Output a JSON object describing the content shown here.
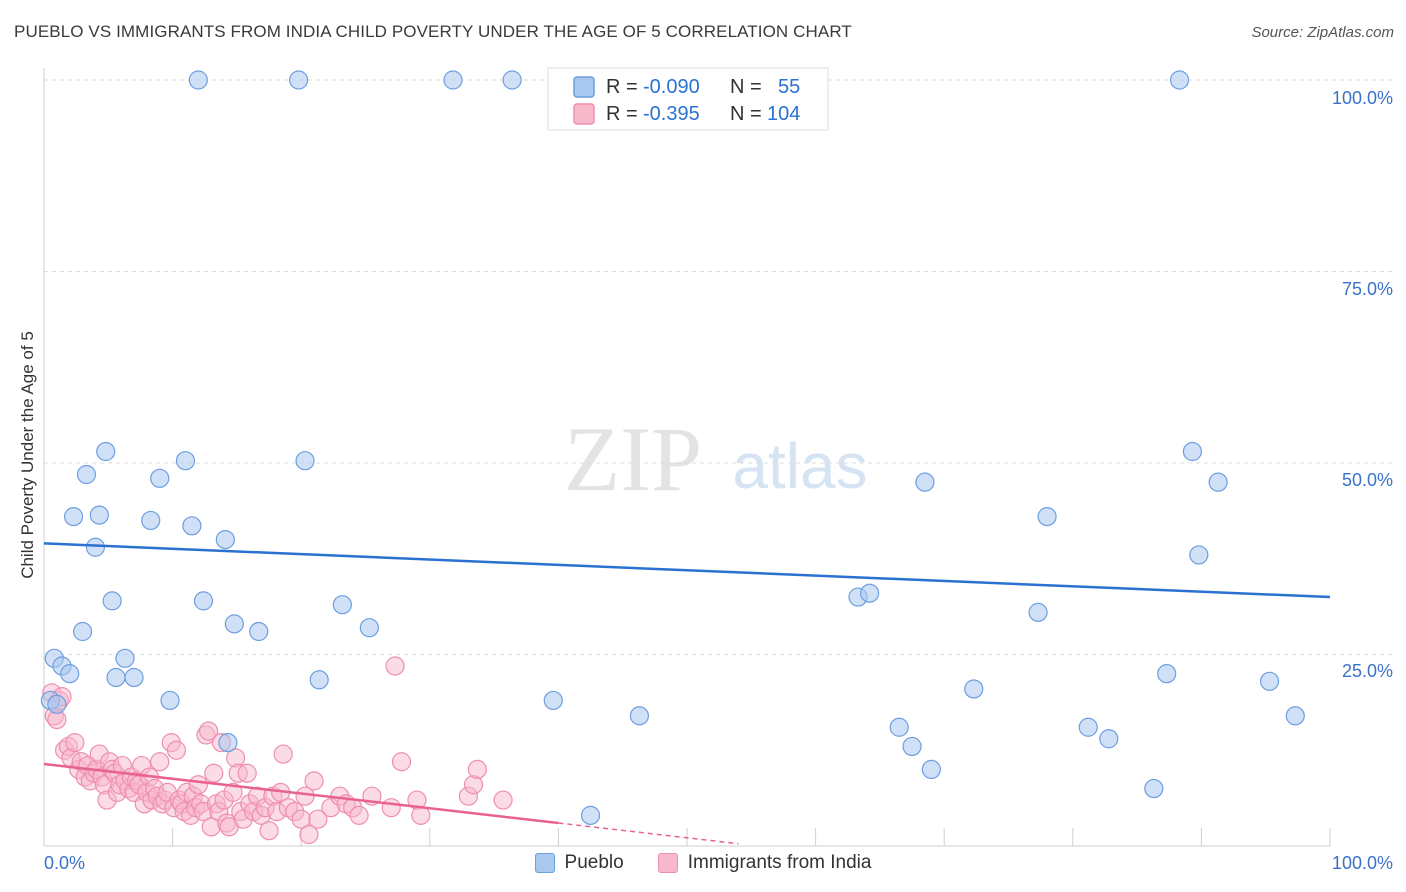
{
  "title": "PUEBLO VS IMMIGRANTS FROM INDIA CHILD POVERTY UNDER THE AGE OF 5 CORRELATION CHART",
  "source": "Source: ZipAtlas.com",
  "watermark": {
    "zip": "ZIP",
    "atlas": "atlas"
  },
  "colors": {
    "pueblo_fill": "#a9c8f0",
    "pueblo_stroke": "#6d9ee0",
    "pueblo_line": "#2a72d2",
    "india_fill": "#f7b8cc",
    "india_stroke": "#ee8fae",
    "india_line": "#e8628f",
    "tick_text": "#3a72c8",
    "grid": "#dddddd"
  },
  "legend": {
    "rows": [
      {
        "r_label": "R =",
        "r_value": "-0.090",
        "n_label": "N =",
        "n_value": "55",
        "series": "pueblo"
      },
      {
        "r_label": "R =",
        "r_value": "-0.395",
        "n_label": "N =",
        "n_value": "104",
        "series": "india"
      }
    ]
  },
  "chart_data": {
    "type": "scatter",
    "title": "PUEBLO VS IMMIGRANTS FROM INDIA CHILD POVERTY UNDER THE AGE OF 5 CORRELATION CHART",
    "xlabel": "",
    "ylabel": "Child Poverty Under the Age of 5",
    "xlim": [
      0,
      100
    ],
    "ylim": [
      0,
      100
    ],
    "x_tick_labels": [
      "0.0%",
      "100.0%"
    ],
    "y_ticks": [
      25,
      50,
      75,
      100
    ],
    "y_tick_labels": [
      "25.0%",
      "50.0%",
      "75.0%",
      "100.0%"
    ],
    "grid": true,
    "legend_position": "top-center",
    "series": [
      {
        "name": "Pueblo",
        "color": "#a9c8f0",
        "trend": {
          "x": [
            0,
            100
          ],
          "y": [
            39.5,
            32.5
          ]
        },
        "points": [
          [
            0.8,
            24.5
          ],
          [
            1.4,
            23.5
          ],
          [
            2.0,
            22.5
          ],
          [
            2.3,
            43
          ],
          [
            3.3,
            48.5
          ],
          [
            4.0,
            39
          ],
          [
            4.3,
            43.2
          ],
          [
            4.8,
            51.5
          ],
          [
            5.3,
            32
          ],
          [
            5.6,
            22
          ],
          [
            3.0,
            28
          ],
          [
            6.3,
            24.5
          ],
          [
            7.0,
            22
          ],
          [
            8.3,
            42.5
          ],
          [
            9.0,
            48
          ],
          [
            9.8,
            19
          ],
          [
            11.0,
            50.3
          ],
          [
            11.5,
            41.8
          ],
          [
            12.0,
            100
          ],
          [
            12.4,
            32
          ],
          [
            14.1,
            40
          ],
          [
            14.3,
            13.5
          ],
          [
            14.8,
            29
          ],
          [
            16.7,
            28
          ],
          [
            19.8,
            100
          ],
          [
            20.3,
            50.3
          ],
          [
            21.4,
            21.7
          ],
          [
            23.2,
            31.5
          ],
          [
            25.3,
            28.5
          ],
          [
            31.8,
            100
          ],
          [
            36.4,
            100
          ],
          [
            39.6,
            19
          ],
          [
            42.5,
            4
          ],
          [
            46.3,
            17
          ],
          [
            63.3,
            32.5
          ],
          [
            64.2,
            33
          ],
          [
            66.5,
            15.5
          ],
          [
            67.5,
            13
          ],
          [
            68.5,
            47.5
          ],
          [
            69.0,
            10
          ],
          [
            72.3,
            20.5
          ],
          [
            77.3,
            30.5
          ],
          [
            78.0,
            43
          ],
          [
            81.2,
            15.5
          ],
          [
            82.8,
            14
          ],
          [
            86.3,
            7.5
          ],
          [
            87.3,
            22.5
          ],
          [
            88.3,
            100
          ],
          [
            89.3,
            51.5
          ],
          [
            89.8,
            38
          ],
          [
            91.3,
            47.5
          ],
          [
            95.3,
            21.5
          ],
          [
            97.3,
            17
          ],
          [
            0.5,
            19
          ],
          [
            1.0,
            18.5
          ]
        ]
      },
      {
        "name": "Immigrants from India",
        "color": "#f7b8cc",
        "trend": {
          "x": [
            0,
            40
          ],
          "y": [
            10.7,
            3.0
          ]
        },
        "trend_dashed_extension": {
          "x": [
            40,
            54
          ],
          "y": [
            3.0,
            0.3
          ]
        },
        "points": [
          [
            0.6,
            20
          ],
          [
            0.8,
            17
          ],
          [
            1.2,
            19
          ],
          [
            1.6,
            12.5
          ],
          [
            1.9,
            13
          ],
          [
            2.1,
            11.5
          ],
          [
            2.4,
            13.5
          ],
          [
            2.7,
            10
          ],
          [
            2.9,
            11
          ],
          [
            3.2,
            9
          ],
          [
            3.4,
            10.5
          ],
          [
            3.6,
            8.5
          ],
          [
            3.9,
            9.5
          ],
          [
            4.1,
            10
          ],
          [
            4.3,
            12
          ],
          [
            4.5,
            9
          ],
          [
            4.7,
            8
          ],
          [
            4.9,
            6
          ],
          [
            5.1,
            11
          ],
          [
            5.3,
            10
          ],
          [
            5.5,
            9.5
          ],
          [
            5.7,
            7
          ],
          [
            5.9,
            8
          ],
          [
            6.1,
            10.5
          ],
          [
            6.3,
            8.5
          ],
          [
            6.6,
            7.5
          ],
          [
            6.8,
            9
          ],
          [
            7.0,
            7
          ],
          [
            7.2,
            8.5
          ],
          [
            7.4,
            8
          ],
          [
            7.6,
            10.5
          ],
          [
            7.8,
            5.5
          ],
          [
            8.0,
            7
          ],
          [
            8.2,
            9
          ],
          [
            8.4,
            6
          ],
          [
            8.6,
            7.5
          ],
          [
            8.8,
            6.5
          ],
          [
            9.0,
            11
          ],
          [
            9.2,
            5.5
          ],
          [
            9.4,
            6
          ],
          [
            9.6,
            7
          ],
          [
            9.9,
            13.5
          ],
          [
            10.1,
            5
          ],
          [
            10.3,
            12.5
          ],
          [
            10.5,
            6
          ],
          [
            10.7,
            5.5
          ],
          [
            10.9,
            4.5
          ],
          [
            11.1,
            7
          ],
          [
            11.4,
            4
          ],
          [
            11.6,
            6.5
          ],
          [
            11.8,
            5
          ],
          [
            12.0,
            8
          ],
          [
            12.2,
            5.5
          ],
          [
            12.4,
            4.5
          ],
          [
            12.6,
            14.5
          ],
          [
            12.8,
            15
          ],
          [
            13.0,
            2.5
          ],
          [
            13.2,
            9.5
          ],
          [
            13.4,
            5.5
          ],
          [
            13.6,
            4.5
          ],
          [
            13.8,
            13.5
          ],
          [
            14.0,
            6
          ],
          [
            14.2,
            3
          ],
          [
            14.4,
            2.5
          ],
          [
            14.7,
            7
          ],
          [
            14.9,
            11.5
          ],
          [
            15.1,
            9.5
          ],
          [
            15.3,
            4.5
          ],
          [
            15.5,
            3.5
          ],
          [
            15.8,
            9.5
          ],
          [
            16.0,
            5.5
          ],
          [
            16.3,
            4.5
          ],
          [
            16.6,
            6.5
          ],
          [
            16.9,
            4
          ],
          [
            17.2,
            5
          ],
          [
            17.5,
            2
          ],
          [
            17.8,
            6.5
          ],
          [
            18.1,
            4.5
          ],
          [
            18.4,
            7
          ],
          [
            18.6,
            12
          ],
          [
            19.0,
            5
          ],
          [
            19.5,
            4.5
          ],
          [
            20.0,
            3.5
          ],
          [
            20.3,
            6.5
          ],
          [
            20.6,
            1.5
          ],
          [
            21.0,
            8.5
          ],
          [
            21.3,
            3.5
          ],
          [
            22.3,
            5
          ],
          [
            23.0,
            6.5
          ],
          [
            23.5,
            5.5
          ],
          [
            24.0,
            5
          ],
          [
            24.5,
            4
          ],
          [
            25.5,
            6.5
          ],
          [
            27.0,
            5
          ],
          [
            27.3,
            23.5
          ],
          [
            27.8,
            11
          ],
          [
            29.0,
            6
          ],
          [
            29.3,
            4
          ],
          [
            33.0,
            6.5
          ],
          [
            33.4,
            8
          ],
          [
            33.7,
            10
          ],
          [
            35.7,
            6
          ],
          [
            1.0,
            16.5
          ],
          [
            1.4,
            19.5
          ]
        ]
      }
    ]
  },
  "bottom_legend": [
    {
      "label": "Pueblo",
      "series": "pueblo"
    },
    {
      "label": "Immigrants from India",
      "series": "india"
    }
  ]
}
